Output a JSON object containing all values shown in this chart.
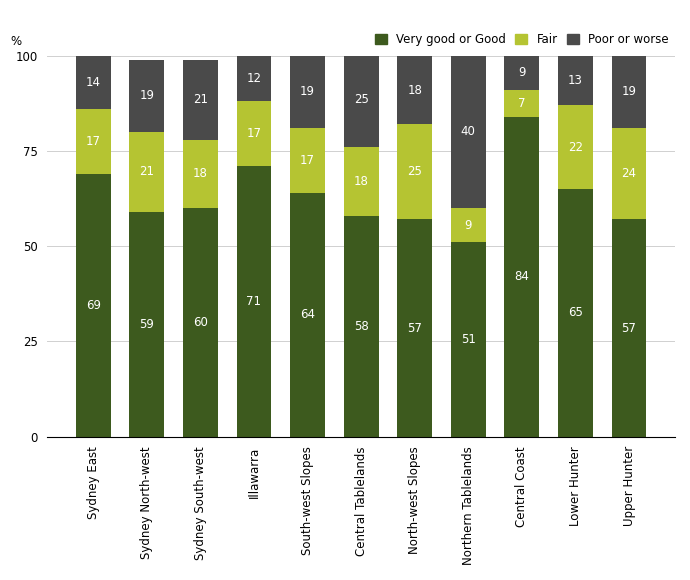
{
  "categories": [
    "Sydney East",
    "Sydney North-west",
    "Sydney South-west",
    "Illawarra",
    "South-west Slopes",
    "Central Tablelands",
    "North-west Slopes",
    "Northern Tablelands",
    "Central Coast",
    "Lower Hunter",
    "Upper Hunter"
  ],
  "very_good": [
    69,
    59,
    60,
    71,
    64,
    58,
    57,
    51,
    84,
    65,
    57
  ],
  "fair": [
    17,
    21,
    18,
    17,
    17,
    18,
    25,
    9,
    7,
    22,
    24
  ],
  "poor": [
    14,
    19,
    21,
    12,
    19,
    25,
    18,
    40,
    9,
    13,
    19
  ],
  "color_very_good": "#3d5a1e",
  "color_fair": "#b5c432",
  "color_poor": "#4a4a4a",
  "ylabel": "%",
  "ylim": [
    0,
    100
  ],
  "yticks": [
    0,
    25,
    50,
    75,
    100
  ],
  "legend_labels": [
    "Very good or Good",
    "Fair",
    "Poor or worse"
  ],
  "bar_width": 0.65,
  "text_color": "#ffffff",
  "fontsize_labels": 8.5,
  "fontsize_axis": 8.5,
  "fontsize_legend": 8.5
}
